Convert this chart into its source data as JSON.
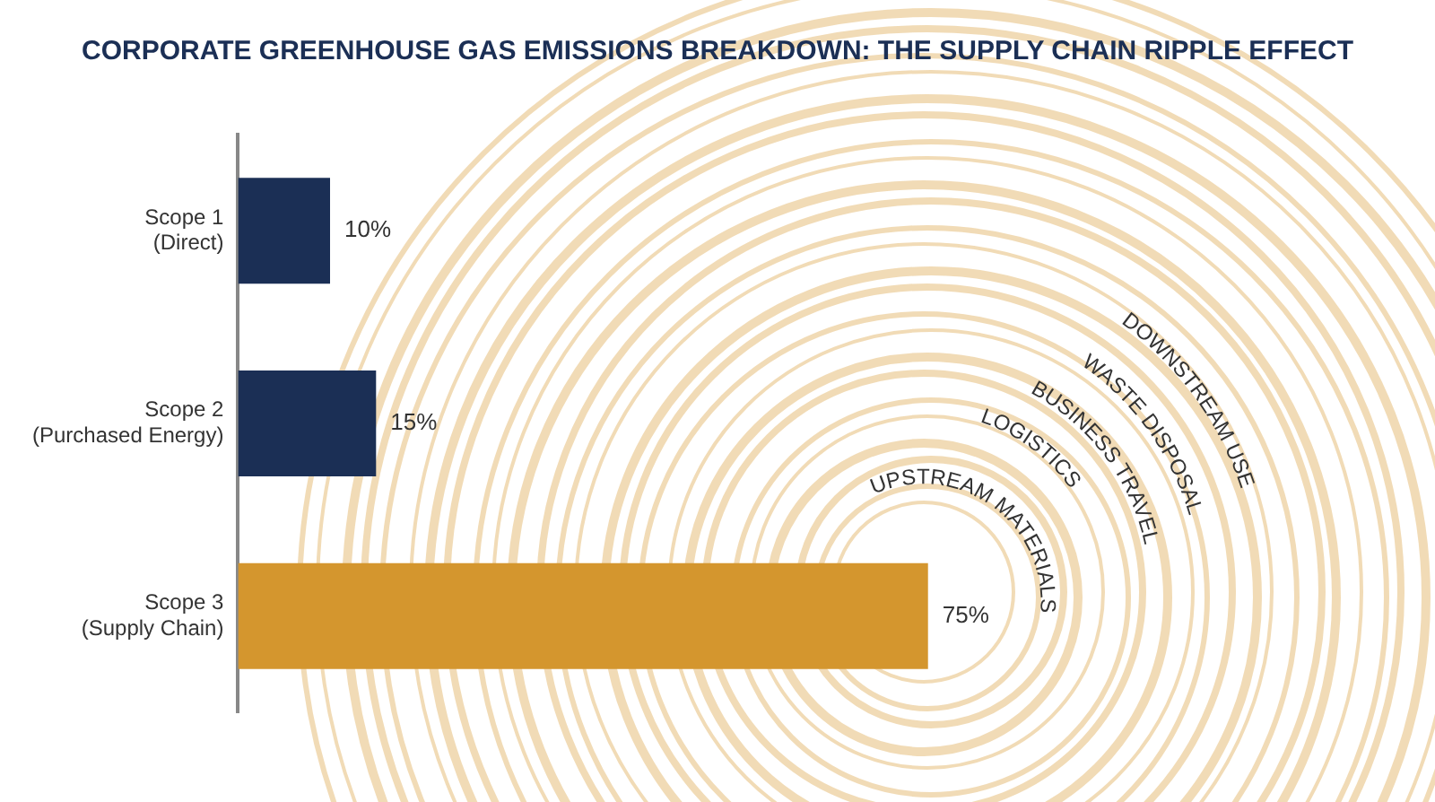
{
  "chart_data": {
    "type": "bar",
    "orientation": "horizontal",
    "title": "CORPORATE GREENHOUSE GAS EMISSIONS BREAKDOWN: THE SUPPLY CHAIN RIPPLE EFFECT",
    "categories": [
      "Scope 1\n(Direct)",
      "Scope 2\n(Purchased Energy)",
      "Scope 3\n(Supply Chain)"
    ],
    "values": [
      10,
      15,
      75
    ],
    "colors": [
      "#1b2f55",
      "#1b2f55",
      "#d4962e"
    ],
    "value_labels": [
      "10%",
      "15%",
      "75%"
    ],
    "annotations": [
      "UPSTREAM MATERIALS",
      "LOGISTICS",
      "BUSINESS TRAVEL",
      "WASTE DISPOSAL",
      "DOWNSTREAM USE"
    ],
    "legend": false,
    "tick_labels": "y"
  }
}
